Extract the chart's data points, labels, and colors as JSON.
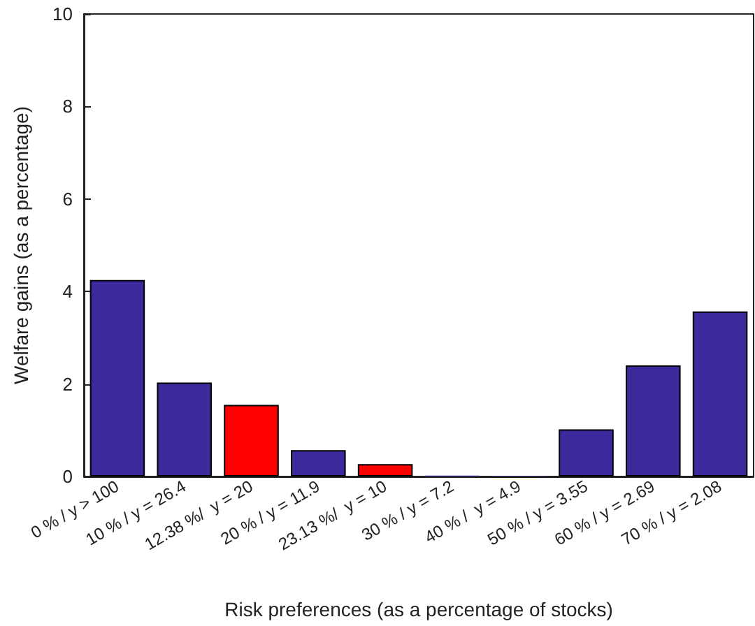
{
  "chart_data": {
    "type": "bar",
    "xlabel": "Risk preferences (as a percentage of stocks)",
    "ylabel": "Welfare gains (as a percentage)",
    "categories": [
      "0 % / y > 100",
      "10 % / y = 26.4",
      "12.38 %/  y = 20",
      "20 % / y = 11.9",
      "23.13 %/  y = 10",
      "30 % / y = 7.2",
      "40 % /  y = 4.9",
      "50 % / y = 3.55",
      "60 % / y = 2.69",
      "70 % / y = 2.08"
    ],
    "values": [
      4.25,
      2.03,
      1.55,
      0.57,
      0.27,
      0.02,
      0.01,
      1.02,
      2.4,
      3.57
    ],
    "colors": [
      "#3a2a9c",
      "#3a2a9c",
      "#ff0000",
      "#3a2a9c",
      "#ff0000",
      "#3a2a9c",
      "#3a2a9c",
      "#3a2a9c",
      "#3a2a9c",
      "#3a2a9c"
    ],
    "ylim": [
      0,
      10
    ],
    "yticks": [
      0,
      2,
      4,
      6,
      8,
      10
    ],
    "grid": false
  }
}
